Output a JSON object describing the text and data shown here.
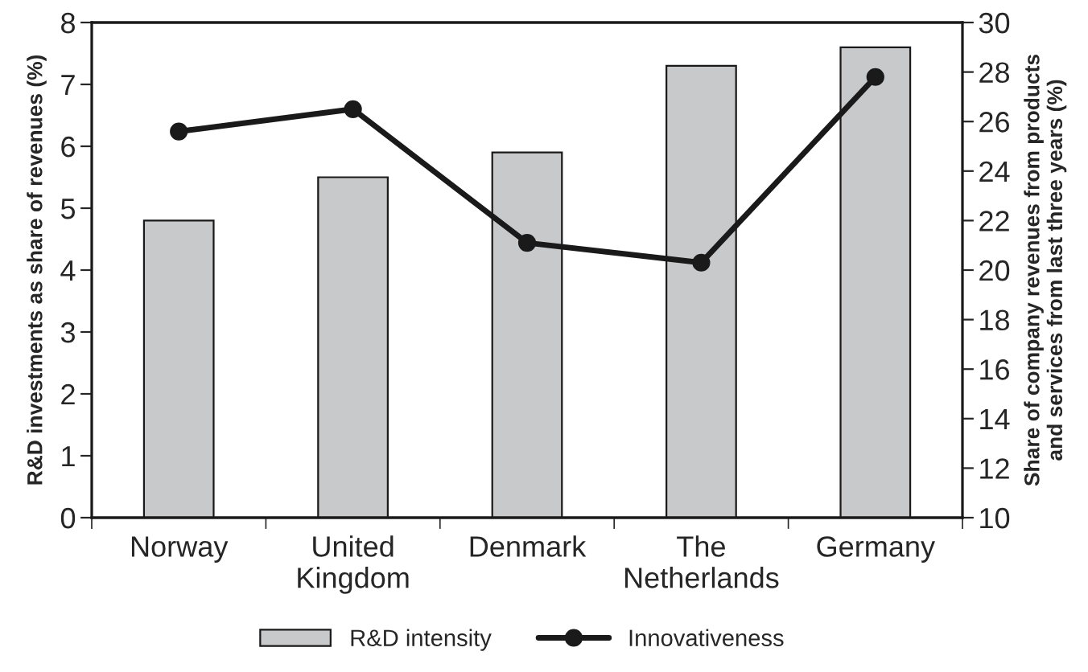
{
  "chart_data": {
    "type": "bar",
    "categories": [
      "Norway",
      "United\nKingdom",
      "Denmark",
      "The\nNetherlands",
      "Germany"
    ],
    "ylabel": "R&D investments as share of revenues (%)",
    "y2label": "Share of company revenues from products\nand services from last three years (%)",
    "ylim": [
      0,
      8
    ],
    "yticks": [
      0,
      1,
      2,
      3,
      4,
      5,
      6,
      7,
      8
    ],
    "y2lim": [
      10,
      30
    ],
    "y2ticks": [
      10,
      12,
      14,
      16,
      18,
      20,
      22,
      24,
      26,
      28,
      30
    ],
    "series": [
      {
        "name": "R&D intensity",
        "color": "#c8c9cb",
        "values": [
          4.8,
          5.5,
          5.9,
          7.3,
          7.6
        ]
      },
      {
        "name": "Innovativeness",
        "type": "line",
        "axis": "y2",
        "color": "#1a1a1a",
        "marker": "circle",
        "line_style": "solid",
        "values": [
          25.6,
          26.5,
          21.1,
          20.3,
          27.8
        ]
      }
    ],
    "grid": false,
    "legend": "bottom"
  }
}
